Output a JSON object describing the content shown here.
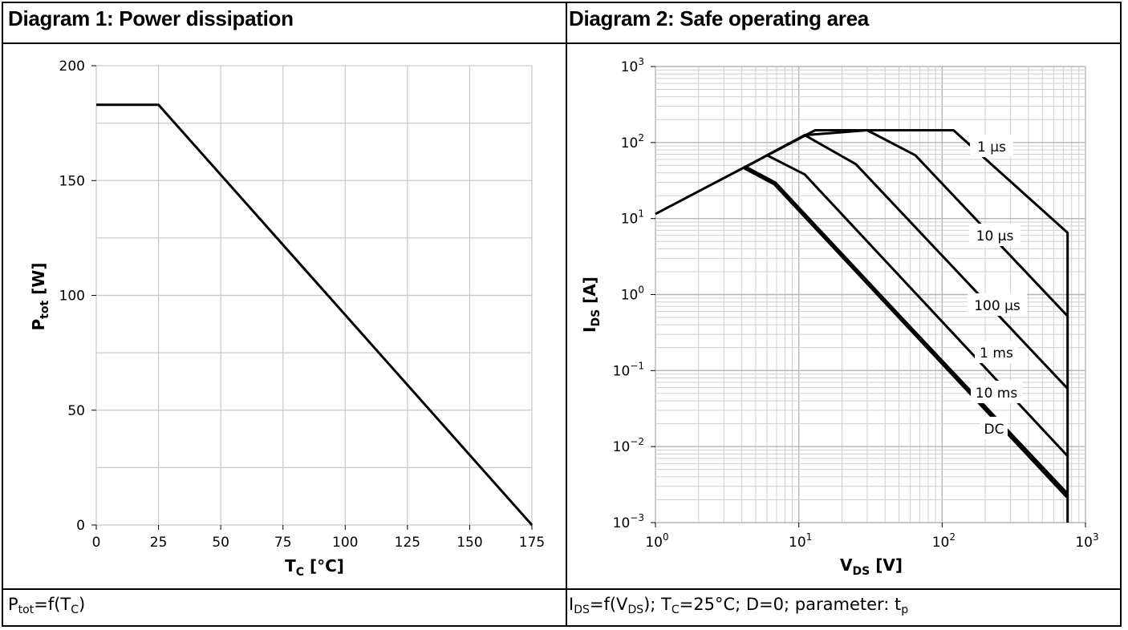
{
  "diagram1": {
    "title": "Diagram 1: Power dissipation",
    "caption": {
      "p": "P",
      "p_sub": "tot",
      "eq": "=f(T",
      "t_sub": "C",
      "close": ")"
    }
  },
  "diagram2": {
    "title": "Diagram 2: Safe operating area",
    "caption": {
      "i": "I",
      "i_sub": "DS",
      "eq": "=f(V",
      "v_sub": "DS",
      "mid": "); T",
      "t_sub": "C",
      "rest": "=25°C; D=0; parameter: t",
      "p_sub": "p"
    }
  },
  "chart_data": [
    {
      "type": "line",
      "title": "Diagram 1: Power dissipation",
      "xlabel": "T_C [°C]",
      "ylabel": "P_tot [W]",
      "xlim": [
        0,
        175
      ],
      "ylim": [
        0,
        200
      ],
      "xticks": [
        0,
        25,
        50,
        75,
        100,
        125,
        150,
        175
      ],
      "yticks": [
        0,
        50,
        100,
        150,
        200
      ],
      "grid": true,
      "series": [
        {
          "x": [
            0,
            25,
            175
          ],
          "y": [
            183,
            183,
            0
          ]
        }
      ]
    },
    {
      "type": "line",
      "title": "Diagram 2: Safe operating area",
      "xlabel": "V_DS [V]",
      "ylabel": "I_DS [A]",
      "xscale": "log",
      "yscale": "log",
      "xlim": [
        1,
        1000
      ],
      "ylim": [
        0.001,
        1000
      ],
      "xticks": [
        "10^0",
        "10^1",
        "10^2",
        "10^3"
      ],
      "yticks": [
        "10^-3",
        "10^-2",
        "10^-1",
        "10^0",
        "10^1",
        "10^2",
        "10^3"
      ],
      "grid": true,
      "series": [
        {
          "name": "1 µs",
          "x": [
            1,
            13,
            120,
            750,
            750
          ],
          "y": [
            11.5,
            145,
            145,
            6.5,
            0.001
          ]
        },
        {
          "name": "10 µs",
          "x": [
            11,
            30,
            65,
            750
          ],
          "y": [
            125,
            145,
            68,
            0.52
          ]
        },
        {
          "name": "100 µs",
          "x": [
            6,
            11,
            25,
            750
          ],
          "y": [
            68,
            125,
            52,
            0.058
          ]
        },
        {
          "name": "1 ms",
          "x": [
            4.2,
            6,
            11,
            750
          ],
          "y": [
            47,
            68,
            38,
            0.0075
          ]
        },
        {
          "name": "10 ms",
          "x": [
            4.2,
            6.8,
            750
          ],
          "y": [
            47,
            29,
            0.0024
          ]
        },
        {
          "name": "DC",
          "x": [
            4.2,
            6.8,
            750
          ],
          "y": [
            47,
            29,
            0.0022
          ]
        }
      ]
    }
  ]
}
